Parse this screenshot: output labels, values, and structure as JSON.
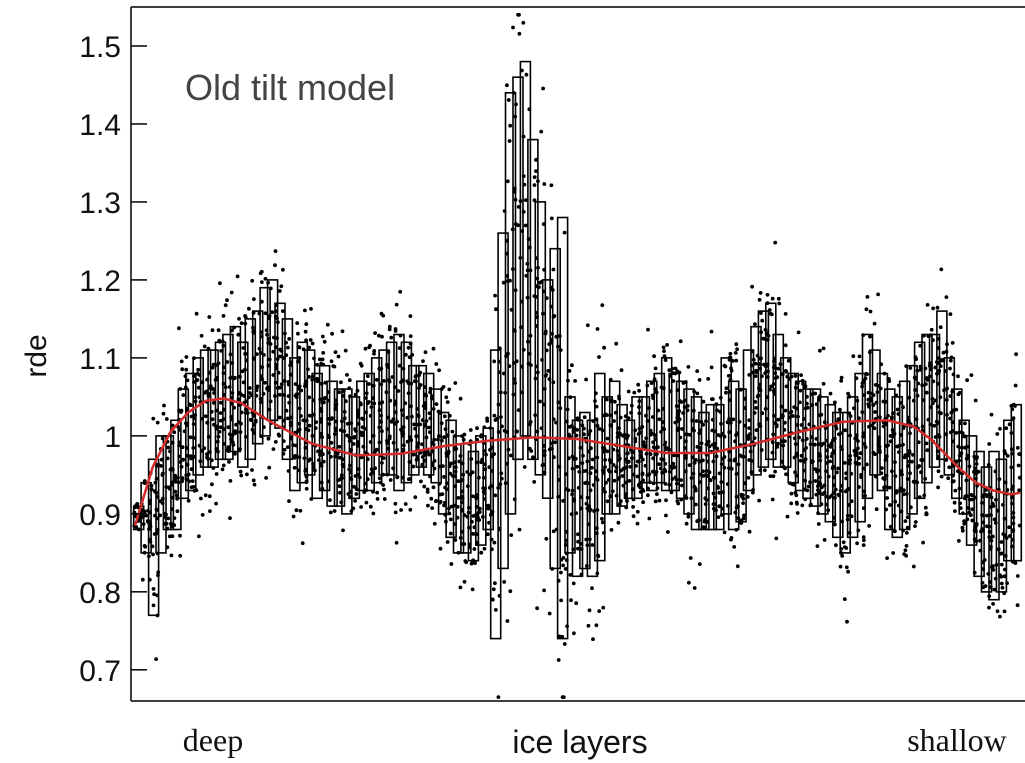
{
  "chart_data": {
    "type": "box",
    "title": "",
    "xlabel": "",
    "ylabel": "rde",
    "ylim": [
      0.66,
      1.55
    ],
    "yticks": [
      0.7,
      0.8,
      0.9,
      1,
      1.1,
      1.2,
      1.3,
      1.4,
      1.5
    ],
    "ytick_labels": [
      "0.7",
      "0.8",
      "0.9",
      "1",
      "1.1",
      "1.2",
      "1.3",
      "1.4",
      "1.5"
    ],
    "x_labels": {
      "left": "deep",
      "center": "ice layers",
      "right": "shallow"
    },
    "annotation": "Old tilt model",
    "grid": false,
    "legend": "none",
    "colors": {
      "boxes": "#000000",
      "points": "#000000",
      "fit": "#d42a2a"
    },
    "boxes": [
      [
        0.88,
        0.91
      ],
      [
        0.85,
        0.94
      ],
      [
        0.77,
        0.97
      ],
      [
        0.85,
        1.0
      ],
      [
        0.88,
        1.0
      ],
      [
        0.88,
        1.02
      ],
      [
        0.92,
        1.06
      ],
      [
        0.93,
        1.08
      ],
      [
        0.95,
        1.1
      ],
      [
        0.96,
        1.11
      ],
      [
        0.96,
        1.11
      ],
      [
        0.97,
        1.12
      ],
      [
        0.97,
        1.13
      ],
      [
        0.98,
        1.14
      ],
      [
        0.96,
        1.12
      ],
      [
        0.97,
        1.15
      ],
      [
        0.99,
        1.16
      ],
      [
        1.0,
        1.19
      ],
      [
        1.02,
        1.2
      ],
      [
        1.01,
        1.17
      ],
      [
        0.97,
        1.15
      ],
      [
        0.93,
        1.1
      ],
      [
        0.94,
        1.12
      ],
      [
        0.95,
        1.11
      ],
      [
        0.92,
        1.08
      ],
      [
        0.93,
        1.09
      ],
      [
        0.91,
        1.07
      ],
      [
        0.91,
        1.06
      ],
      [
        0.9,
        1.06
      ],
      [
        0.92,
        1.05
      ],
      [
        0.93,
        1.07
      ],
      [
        0.93,
        1.08
      ],
      [
        0.94,
        1.1
      ],
      [
        0.95,
        1.11
      ],
      [
        0.95,
        1.12
      ],
      [
        0.93,
        1.13
      ],
      [
        0.94,
        1.12
      ],
      [
        0.95,
        1.09
      ],
      [
        0.96,
        1.09
      ],
      [
        0.95,
        1.08
      ],
      [
        0.94,
        1.06
      ],
      [
        0.9,
        1.03
      ],
      [
        0.87,
        1.02
      ],
      [
        0.85,
        1.0
      ],
      [
        0.85,
        0.99
      ],
      [
        0.84,
        0.98
      ],
      [
        0.86,
        1.0
      ],
      [
        0.88,
        1.01
      ],
      [
        0.74,
        1.11
      ],
      [
        0.83,
        1.26
      ],
      [
        0.9,
        1.44
      ],
      [
        0.97,
        1.46
      ],
      [
        1.0,
        1.48
      ],
      [
        0.97,
        1.38
      ],
      [
        0.95,
        1.3
      ],
      [
        0.92,
        1.2
      ],
      [
        0.83,
        1.24
      ],
      [
        0.74,
        1.28
      ],
      [
        0.85,
        1.05
      ],
      [
        0.82,
        1.02
      ],
      [
        0.83,
        1.03
      ],
      [
        0.82,
        1.02
      ],
      [
        0.84,
        1.08
      ],
      [
        0.9,
        1.05
      ],
      [
        0.9,
        1.07
      ],
      [
        0.91,
        1.04
      ],
      [
        0.92,
        1.02
      ],
      [
        0.92,
        1.05
      ],
      [
        0.94,
        1.05
      ],
      [
        0.93,
        1.07
      ],
      [
        0.94,
        1.08
      ],
      [
        0.93,
        1.1
      ],
      [
        0.93,
        1.08
      ],
      [
        0.92,
        1.07
      ],
      [
        0.9,
        1.06
      ],
      [
        0.88,
        1.05
      ],
      [
        0.88,
        1.03
      ],
      [
        0.88,
        1.04
      ],
      [
        0.88,
        1.04
      ],
      [
        0.9,
        1.1
      ],
      [
        0.88,
        1.07
      ],
      [
        0.89,
        1.06
      ],
      [
        0.93,
        1.11
      ],
      [
        0.95,
        1.14
      ],
      [
        0.96,
        1.16
      ],
      [
        0.97,
        1.17
      ],
      [
        0.96,
        1.13
      ],
      [
        0.96,
        1.1
      ],
      [
        0.94,
        1.08
      ],
      [
        0.93,
        1.07
      ],
      [
        0.92,
        1.06
      ],
      [
        0.91,
        1.06
      ],
      [
        0.9,
        1.05
      ],
      [
        0.89,
        1.04
      ],
      [
        0.87,
        1.03
      ],
      [
        0.85,
        1.03
      ],
      [
        0.87,
        1.05
      ],
      [
        0.89,
        1.08
      ],
      [
        0.92,
        1.13
      ],
      [
        0.95,
        1.11
      ],
      [
        0.93,
        1.08
      ],
      [
        0.88,
        1.06
      ],
      [
        0.87,
        1.05
      ],
      [
        0.88,
        1.07
      ],
      [
        0.9,
        1.09
      ],
      [
        0.92,
        1.12
      ],
      [
        0.94,
        1.13
      ],
      [
        0.96,
        1.13
      ],
      [
        0.97,
        1.16
      ],
      [
        0.95,
        1.1
      ],
      [
        0.92,
        1.06
      ],
      [
        0.9,
        1.02
      ],
      [
        0.86,
        1.0
      ],
      [
        0.82,
        0.98
      ],
      [
        0.8,
        0.96
      ],
      [
        0.79,
        0.98
      ],
      [
        0.8,
        0.97
      ],
      [
        0.84,
        1.02
      ],
      [
        0.84,
        1.04
      ]
    ],
    "fit": {
      "x": [
        0,
        0.02,
        0.04,
        0.06,
        0.08,
        0.1,
        0.12,
        0.15,
        0.2,
        0.25,
        0.3,
        0.35,
        0.4,
        0.45,
        0.5,
        0.55,
        0.6,
        0.65,
        0.7,
        0.75,
        0.8,
        0.85,
        0.88,
        0.9,
        0.93,
        0.95,
        0.97,
        0.99,
        1.0
      ],
      "y": [
        0.885,
        0.96,
        1.005,
        1.03,
        1.045,
        1.048,
        1.042,
        1.02,
        0.99,
        0.975,
        0.977,
        0.987,
        0.994,
        0.998,
        0.996,
        0.987,
        0.978,
        0.978,
        0.99,
        1.005,
        1.018,
        1.02,
        1.012,
        0.995,
        0.96,
        0.94,
        0.93,
        0.925,
        0.927
      ]
    }
  }
}
